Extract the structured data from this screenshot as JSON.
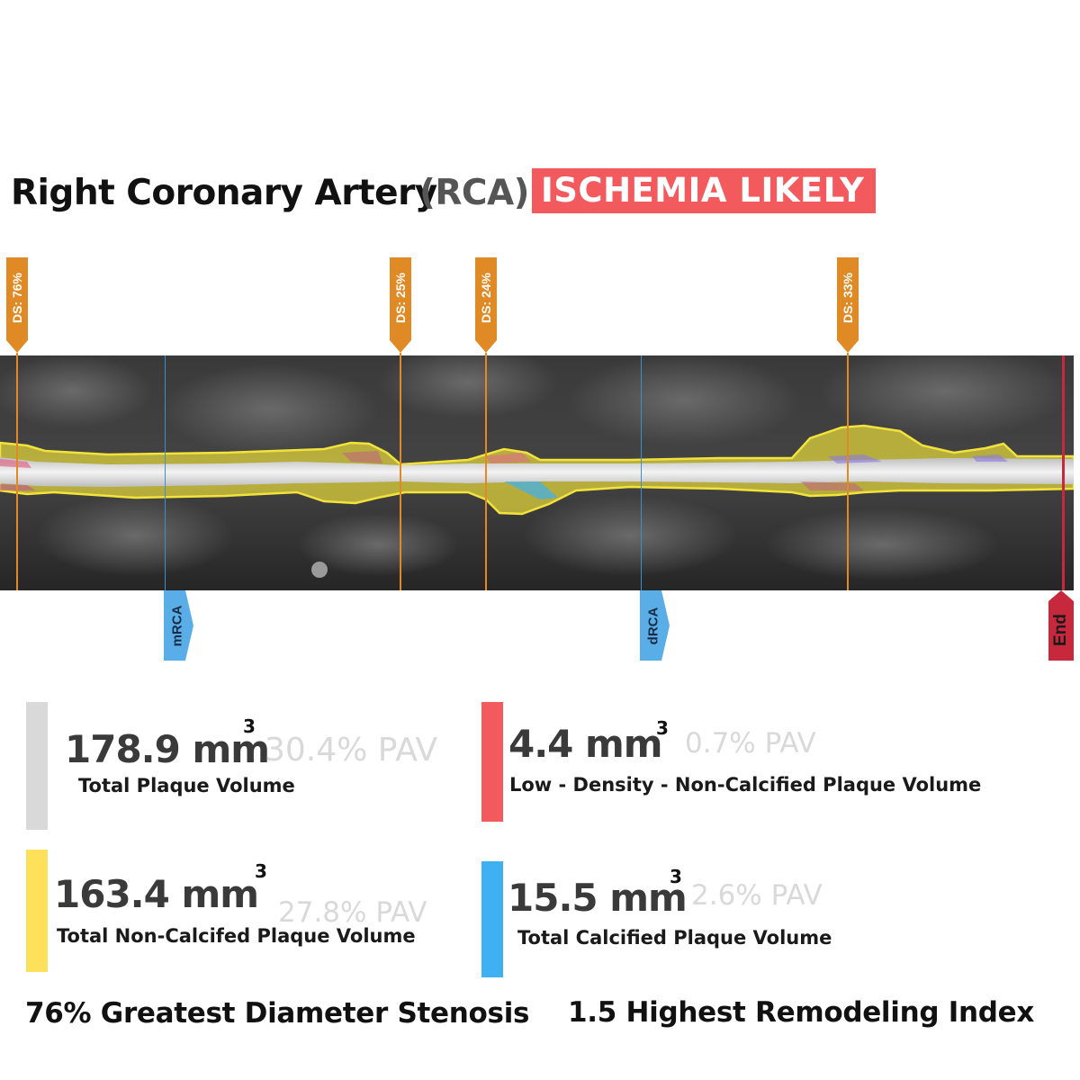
{
  "header": {
    "title": "Right Coronary Artery",
    "abbreviation": "(RCA)",
    "status_badge": "ISCHEMIA LIKELY",
    "status_color": "#f25a5e"
  },
  "vessel": {
    "stenosis_markers": [
      {
        "label": "DS: 76%"
      },
      {
        "label": "DS: 25%"
      },
      {
        "label": "DS: 24%"
      },
      {
        "label": "DS: 33%"
      }
    ],
    "segment_markers": [
      {
        "label": "mRCA"
      },
      {
        "label": "dRCA"
      }
    ],
    "end_marker": {
      "label": "End"
    },
    "colors": {
      "stenosis_marker": "#e08a25",
      "segment_marker": "#5aaee8",
      "end_marker": "#c8283c",
      "plaque_outline": "#f2e23c",
      "lumen": "#e8e8e8"
    }
  },
  "metrics": {
    "total_plaque": {
      "value": "178.9 mm",
      "unit_sup": "3",
      "pav": "30.4% PAV",
      "label": "Total Plaque Volume",
      "color": "#d9d9d9"
    },
    "low_density": {
      "value": "4.4 mm",
      "unit_sup": "3",
      "pav": "0.7% PAV",
      "label": "Low - Density - Non-Calcified Plaque Volume",
      "color": "#f25a5e"
    },
    "non_calcified": {
      "value": "163.4 mm",
      "unit_sup": "3",
      "pav": "27.8% PAV",
      "label": "Total Non-Calcifed Plaque Volume",
      "color": "#fde15a"
    },
    "calcified": {
      "value": "15.5 mm",
      "unit_sup": "3",
      "pav": "2.6% PAV",
      "label": "Total Calcified Plaque Volume",
      "color": "#3fb0f2"
    }
  },
  "footer": {
    "greatest_stenosis": "76% Greatest Diameter Stenosis",
    "remodeling_index": "1.5 Highest Remodeling Index"
  }
}
